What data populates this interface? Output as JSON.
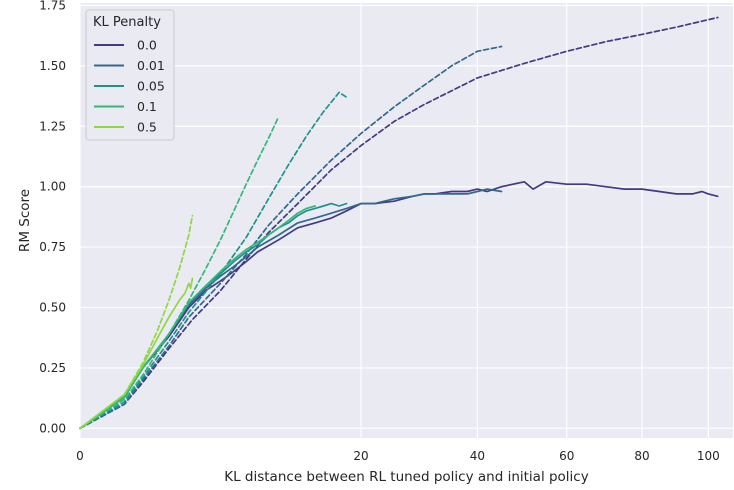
{
  "chart_data": {
    "type": "line",
    "title": "",
    "xlabel": "KL distance between RL tuned policy and initial policy",
    "ylabel": "RM Score",
    "x_scale": "sqrt",
    "xlim": [
      0,
      108
    ],
    "ylim": [
      -0.04,
      1.76
    ],
    "xticks": [
      0,
      20,
      40,
      60,
      80,
      100
    ],
    "xtick_labels": [
      "0",
      "20",
      "40",
      "60",
      "80",
      "100"
    ],
    "yticks": [
      0,
      0.25,
      0.5,
      0.75,
      1.0,
      1.25,
      1.5,
      1.75
    ],
    "ytick_labels": [
      "0.00",
      "0.25",
      "0.50",
      "0.75",
      "1.00",
      "1.25",
      "1.50",
      "1.75"
    ],
    "grid": true,
    "background": "#eaeaf2",
    "legend": {
      "title": "KL Penalty",
      "position": "top-left",
      "entries": [
        "0.0",
        "0.01",
        "0.05",
        "0.1",
        "0.5"
      ]
    },
    "series": [
      {
        "name": "0.0",
        "color": "#443983",
        "style": "dashed",
        "x": [
          0,
          0.5,
          1,
          2,
          3.2,
          5,
          7,
          9,
          12,
          16,
          20,
          25,
          30,
          40,
          50,
          60,
          70,
          80,
          90,
          103
        ],
        "y": [
          0,
          0.1,
          0.19,
          0.33,
          0.45,
          0.57,
          0.7,
          0.81,
          0.93,
          1.07,
          1.17,
          1.27,
          1.34,
          1.45,
          1.51,
          1.56,
          1.6,
          1.63,
          1.66,
          1.7
        ]
      },
      {
        "name": "0.0",
        "color": "#443983",
        "style": "solid",
        "x": [
          0,
          0.5,
          1,
          2,
          3,
          4,
          5,
          6,
          7,
          8,
          10,
          12,
          14,
          16,
          18,
          20,
          22,
          25,
          28,
          30,
          32,
          35,
          38,
          40,
          42,
          45,
          50,
          52,
          55,
          60,
          65,
          70,
          75,
          80,
          85,
          90,
          92,
          95,
          98,
          100,
          103
        ],
        "y": [
          0,
          0.13,
          0.25,
          0.38,
          0.5,
          0.57,
          0.61,
          0.65,
          0.69,
          0.73,
          0.78,
          0.83,
          0.85,
          0.87,
          0.9,
          0.93,
          0.93,
          0.94,
          0.96,
          0.97,
          0.97,
          0.98,
          0.98,
          0.99,
          0.98,
          1.0,
          1.02,
          0.99,
          1.02,
          1.01,
          1.01,
          1.0,
          0.99,
          0.99,
          0.98,
          0.97,
          0.97,
          0.97,
          0.98,
          0.97,
          0.96
        ]
      },
      {
        "name": "0.01",
        "color": "#31688e",
        "style": "dashed",
        "x": [
          0,
          0.5,
          1,
          2,
          3,
          5,
          7,
          9,
          12,
          16,
          20,
          25,
          30,
          35,
          40,
          45
        ],
        "y": [
          0,
          0.1,
          0.2,
          0.34,
          0.46,
          0.6,
          0.72,
          0.84,
          0.97,
          1.11,
          1.22,
          1.33,
          1.42,
          1.5,
          1.56,
          1.58
        ]
      },
      {
        "name": "0.01",
        "color": "#31688e",
        "style": "solid",
        "x": [
          0,
          0.5,
          1,
          2,
          3,
          4,
          5,
          6,
          7,
          8,
          10,
          12,
          14,
          16,
          18,
          20,
          22,
          25,
          28,
          30,
          32,
          35,
          38,
          40,
          42,
          45
        ],
        "y": [
          0,
          0.13,
          0.25,
          0.39,
          0.51,
          0.58,
          0.63,
          0.67,
          0.71,
          0.75,
          0.8,
          0.85,
          0.87,
          0.89,
          0.91,
          0.93,
          0.93,
          0.95,
          0.96,
          0.97,
          0.97,
          0.97,
          0.97,
          0.98,
          0.99,
          0.98
        ]
      },
      {
        "name": "0.05",
        "color": "#21918c",
        "style": "dashed",
        "x": [
          0,
          0.5,
          1,
          2,
          3,
          5,
          7,
          9,
          11,
          13,
          15,
          16,
          17,
          18
        ],
        "y": [
          0,
          0.11,
          0.21,
          0.36,
          0.48,
          0.64,
          0.79,
          0.95,
          1.09,
          1.21,
          1.31,
          1.35,
          1.39,
          1.37
        ]
      },
      {
        "name": "0.05",
        "color": "#21918c",
        "style": "solid",
        "x": [
          0,
          0.5,
          1,
          2,
          3,
          4,
          5,
          6,
          7,
          8,
          9,
          10,
          11,
          12,
          13,
          14,
          15,
          16,
          17,
          18
        ],
        "y": [
          0,
          0.13,
          0.25,
          0.39,
          0.52,
          0.59,
          0.64,
          0.69,
          0.73,
          0.76,
          0.8,
          0.83,
          0.85,
          0.88,
          0.9,
          0.91,
          0.92,
          0.93,
          0.92,
          0.93
        ]
      },
      {
        "name": "0.1",
        "color": "#35b779",
        "style": "dashed",
        "x": [
          0,
          0.5,
          1,
          2,
          3,
          4,
          5,
          6,
          7,
          8,
          9,
          10
        ],
        "y": [
          0,
          0.12,
          0.22,
          0.39,
          0.53,
          0.66,
          0.78,
          0.9,
          1.01,
          1.11,
          1.2,
          1.29
        ]
      },
      {
        "name": "0.1",
        "color": "#35b779",
        "style": "solid",
        "x": [
          0,
          0.5,
          1,
          2,
          3,
          4,
          5,
          6,
          7,
          8,
          9,
          10,
          11,
          12,
          13,
          14
        ],
        "y": [
          0,
          0.13,
          0.25,
          0.39,
          0.52,
          0.59,
          0.65,
          0.7,
          0.74,
          0.77,
          0.8,
          0.83,
          0.86,
          0.89,
          0.91,
          0.92
        ]
      },
      {
        "name": "0.5",
        "color": "#90d743",
        "style": "dashed",
        "x": [
          0,
          0.5,
          1,
          1.5,
          2,
          2.5,
          3,
          3.2
        ],
        "y": [
          0,
          0.14,
          0.27,
          0.4,
          0.53,
          0.66,
          0.8,
          0.88
        ]
      },
      {
        "name": "0.5",
        "color": "#90d743",
        "style": "solid",
        "x": [
          0,
          0.5,
          1,
          1.5,
          2,
          2.5,
          2.8,
          3,
          3.1,
          3.2
        ],
        "y": [
          0,
          0.14,
          0.26,
          0.37,
          0.46,
          0.53,
          0.56,
          0.6,
          0.58,
          0.62
        ]
      }
    ]
  }
}
